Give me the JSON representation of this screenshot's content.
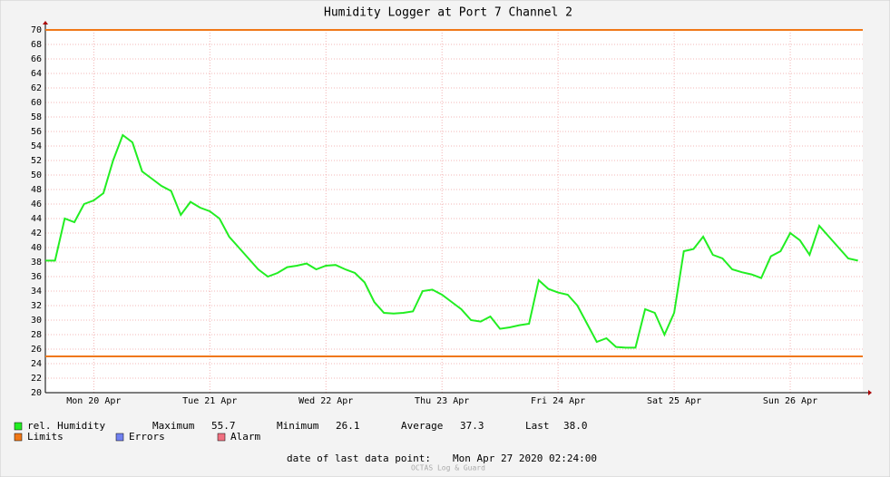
{
  "chart_data": {
    "type": "line",
    "title": "Humidity Logger at Port 7 Channel 2",
    "series": [
      {
        "name": "rel. Humidity",
        "color": "#22ee22",
        "values": [
          38.2,
          38.2,
          44,
          43.5,
          46,
          46.5,
          47.5,
          52,
          55.5,
          54.5,
          50.5,
          49.5,
          48.5,
          47.8,
          44.5,
          46.3,
          45.5,
          45,
          44,
          41.5,
          40,
          38.5,
          37,
          36,
          36.5,
          37.3,
          37.5,
          37.8,
          37,
          37.5,
          37.6,
          37,
          36.5,
          35.2,
          32.5,
          31,
          30.9,
          31,
          31.2,
          34,
          34.2,
          33.5,
          32.5,
          31.5,
          30,
          29.8,
          30.5,
          28.8,
          29,
          29.3,
          29.5,
          35.5,
          34.3,
          33.8,
          33.5,
          32,
          29.5,
          27,
          27.5,
          26.3,
          26.2,
          26.2,
          31.5,
          31,
          28,
          31,
          39.5,
          39.8,
          41.5,
          39,
          38.5,
          37,
          36.6,
          36.3,
          35.8,
          38.8,
          39.5,
          42,
          41,
          39,
          43,
          41.5,
          40,
          38.5,
          38.2
        ]
      }
    ],
    "limits": {
      "name": "Limits",
      "color": "#f07818",
      "values": [
        70,
        25
      ]
    },
    "xlim": [
      0,
      84.5
    ],
    "xticks": [
      {
        "value": 5,
        "label": "Mon 20 Apr"
      },
      {
        "value": 17,
        "label": "Tue 21 Apr"
      },
      {
        "value": 29,
        "label": "Wed 22 Apr"
      },
      {
        "value": 41,
        "label": "Thu 23 Apr"
      },
      {
        "value": 53,
        "label": "Fri 24 Apr"
      },
      {
        "value": 65,
        "label": "Sat 25 Apr"
      },
      {
        "value": 77,
        "label": "Sun 26 Apr"
      }
    ],
    "ylim": [
      20,
      70
    ],
    "yticks": [
      20,
      22,
      24,
      26,
      28,
      30,
      32,
      34,
      36,
      38,
      40,
      42,
      44,
      46,
      48,
      50,
      52,
      54,
      56,
      58,
      60,
      62,
      64,
      66,
      68,
      70
    ],
    "grid": true,
    "stats": [
      {
        "label": "Maximum",
        "value": "55.7"
      },
      {
        "label": "Minimum",
        "value": "26.1"
      },
      {
        "label": "Average",
        "value": "37.3"
      },
      {
        "label": "Last",
        "value": "38.0"
      }
    ],
    "legend_extra": [
      {
        "name": "Errors",
        "color": "#7080f0"
      },
      {
        "name": "Alarm",
        "color": "#f07080"
      }
    ],
    "footer_label": "date of last data point:",
    "footer_value": "Mon Apr 27 2020 02:24:00",
    "watermark": "OCTAS Log & Guard"
  }
}
